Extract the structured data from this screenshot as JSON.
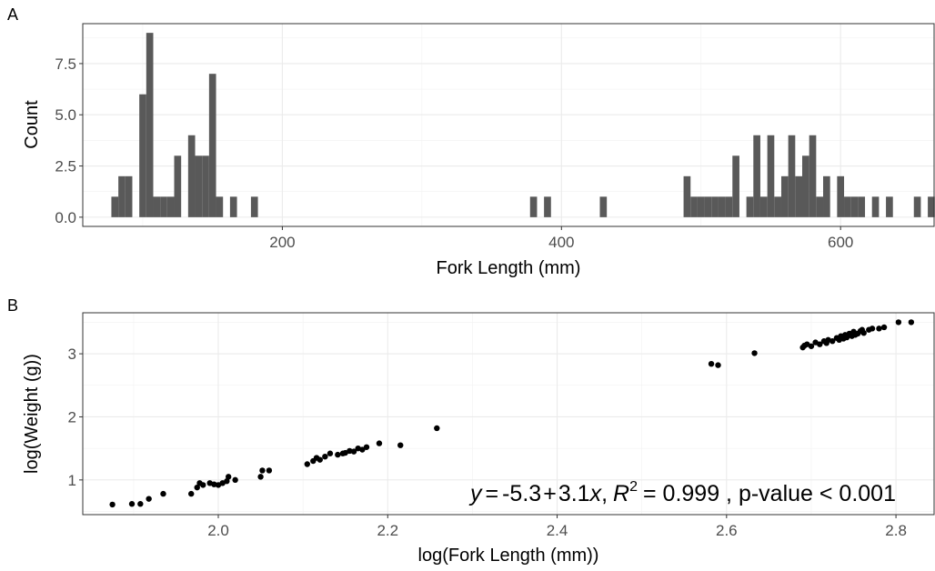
{
  "chart_data": [
    {
      "panel": "A",
      "type": "bar",
      "title": "",
      "xlabel": "Fork Length (mm)",
      "ylabel": "Count",
      "xlim": [
        57,
        667
      ],
      "ylim": [
        -0.45,
        9.45
      ],
      "xticks": [
        200,
        400,
        600
      ],
      "yticks": [
        0.0,
        2.5,
        5.0,
        7.5
      ],
      "ytick_labels": [
        "0.0",
        "2.5",
        "5.0",
        "7.5"
      ],
      "bin_width": 5,
      "grid": true,
      "bar_color": "#595959",
      "bins": [
        {
          "x": 80,
          "count": 1
        },
        {
          "x": 85,
          "count": 2
        },
        {
          "x": 90,
          "count": 2
        },
        {
          "x": 100,
          "count": 6
        },
        {
          "x": 105,
          "count": 9
        },
        {
          "x": 110,
          "count": 1
        },
        {
          "x": 115,
          "count": 1
        },
        {
          "x": 120,
          "count": 1
        },
        {
          "x": 125,
          "count": 3
        },
        {
          "x": 135,
          "count": 4
        },
        {
          "x": 140,
          "count": 3
        },
        {
          "x": 145,
          "count": 3
        },
        {
          "x": 150,
          "count": 7
        },
        {
          "x": 155,
          "count": 1
        },
        {
          "x": 165,
          "count": 1
        },
        {
          "x": 180,
          "count": 1
        },
        {
          "x": 380,
          "count": 1
        },
        {
          "x": 390,
          "count": 1
        },
        {
          "x": 430,
          "count": 1
        },
        {
          "x": 490,
          "count": 2
        },
        {
          "x": 495,
          "count": 1
        },
        {
          "x": 500,
          "count": 1
        },
        {
          "x": 505,
          "count": 1
        },
        {
          "x": 510,
          "count": 1
        },
        {
          "x": 515,
          "count": 1
        },
        {
          "x": 520,
          "count": 1
        },
        {
          "x": 525,
          "count": 3
        },
        {
          "x": 535,
          "count": 1
        },
        {
          "x": 540,
          "count": 4
        },
        {
          "x": 545,
          "count": 1
        },
        {
          "x": 550,
          "count": 4
        },
        {
          "x": 555,
          "count": 1
        },
        {
          "x": 560,
          "count": 2
        },
        {
          "x": 565,
          "count": 4
        },
        {
          "x": 570,
          "count": 2
        },
        {
          "x": 575,
          "count": 3
        },
        {
          "x": 580,
          "count": 4
        },
        {
          "x": 585,
          "count": 1
        },
        {
          "x": 590,
          "count": 2
        },
        {
          "x": 600,
          "count": 2
        },
        {
          "x": 605,
          "count": 1
        },
        {
          "x": 610,
          "count": 1
        },
        {
          "x": 615,
          "count": 1
        },
        {
          "x": 625,
          "count": 1
        },
        {
          "x": 635,
          "count": 1
        },
        {
          "x": 655,
          "count": 1
        },
        {
          "x": 665,
          "count": 1
        }
      ]
    },
    {
      "panel": "B",
      "type": "scatter",
      "title": "",
      "xlabel": "log(Fork Length (mm))",
      "ylabel": "log(Weight (g))",
      "xlim": [
        1.84,
        2.845
      ],
      "ylim": [
        0.45,
        3.65
      ],
      "xticks": [
        2.0,
        2.2,
        2.4,
        2.6,
        2.8
      ],
      "xtick_labels": [
        "2.0",
        "2.2",
        "2.4",
        "2.6",
        "2.8"
      ],
      "yticks": [
        1,
        2,
        3
      ],
      "ytick_labels": [
        "1",
        "2",
        "3"
      ],
      "grid": true,
      "point_color": "#000000",
      "annotation": {
        "y_var": "y",
        "eq_sign": "=",
        "intercept": "-5.3",
        "plus": "+",
        "slope": "3.1",
        "x_var": "x",
        "sep1": ",",
        "r_symbol": "R",
        "r_exp": "2",
        "r2_text": "= 0.999 , p-value < 0.001"
      },
      "points": [
        [
          1.875,
          0.61
        ],
        [
          1.898,
          0.62
        ],
        [
          1.908,
          0.62
        ],
        [
          1.918,
          0.7
        ],
        [
          1.935,
          0.78
        ],
        [
          1.968,
          0.78
        ],
        [
          1.975,
          0.88
        ],
        [
          1.978,
          0.95
        ],
        [
          1.982,
          0.92
        ],
        [
          1.99,
          0.95
        ],
        [
          1.995,
          0.93
        ],
        [
          2.0,
          0.92
        ],
        [
          2.005,
          0.95
        ],
        [
          2.01,
          0.98
        ],
        [
          2.012,
          1.05
        ],
        [
          2.02,
          1.0
        ],
        [
          2.05,
          1.05
        ],
        [
          2.052,
          1.15
        ],
        [
          2.06,
          1.15
        ],
        [
          2.105,
          1.25
        ],
        [
          2.112,
          1.3
        ],
        [
          2.116,
          1.35
        ],
        [
          2.12,
          1.32
        ],
        [
          2.126,
          1.37
        ],
        [
          2.132,
          1.42
        ],
        [
          2.141,
          1.4
        ],
        [
          2.147,
          1.42
        ],
        [
          2.15,
          1.43
        ],
        [
          2.155,
          1.46
        ],
        [
          2.16,
          1.45
        ],
        [
          2.165,
          1.5
        ],
        [
          2.17,
          1.48
        ],
        [
          2.175,
          1.52
        ],
        [
          2.19,
          1.58
        ],
        [
          2.215,
          1.55
        ],
        [
          2.258,
          1.82
        ],
        [
          2.582,
          2.84
        ],
        [
          2.59,
          2.82
        ],
        [
          2.633,
          3.01
        ],
        [
          2.69,
          3.1
        ],
        [
          2.692,
          3.13
        ],
        [
          2.695,
          3.15
        ],
        [
          2.7,
          3.12
        ],
        [
          2.705,
          3.18
        ],
        [
          2.71,
          3.15
        ],
        [
          2.715,
          3.2
        ],
        [
          2.718,
          3.17
        ],
        [
          2.72,
          3.22
        ],
        [
          2.725,
          3.2
        ],
        [
          2.73,
          3.25
        ],
        [
          2.733,
          3.22
        ],
        [
          2.735,
          3.28
        ],
        [
          2.738,
          3.24
        ],
        [
          2.74,
          3.3
        ],
        [
          2.742,
          3.26
        ],
        [
          2.745,
          3.32
        ],
        [
          2.748,
          3.28
        ],
        [
          2.75,
          3.35
        ],
        [
          2.752,
          3.3
        ],
        [
          2.755,
          3.32
        ],
        [
          2.758,
          3.36
        ],
        [
          2.76,
          3.38
        ],
        [
          2.762,
          3.33
        ],
        [
          2.768,
          3.38
        ],
        [
          2.772,
          3.4
        ],
        [
          2.78,
          3.4
        ],
        [
          2.786,
          3.42
        ],
        [
          2.803,
          3.5
        ],
        [
          2.818,
          3.5
        ]
      ]
    }
  ]
}
